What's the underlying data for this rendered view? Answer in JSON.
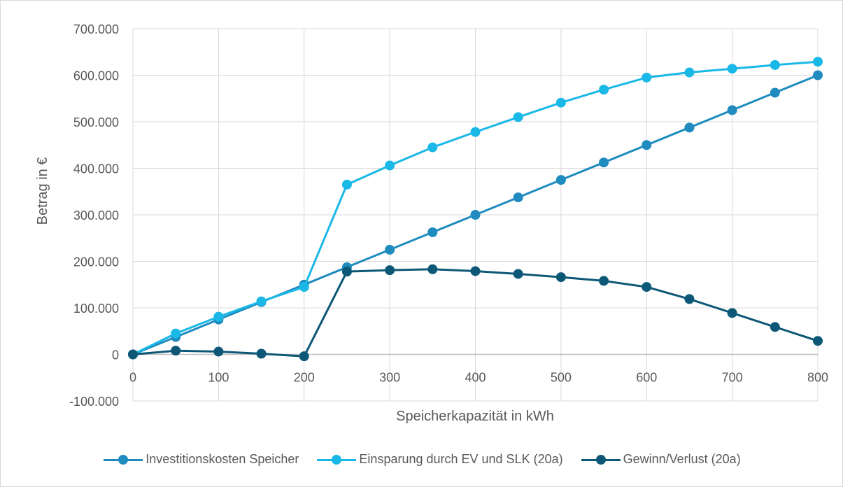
{
  "chart_data": {
    "type": "line",
    "xlabel": "Speicherkapazität in kWh",
    "ylabel": "Betrag  in €",
    "xlim": [
      0,
      800
    ],
    "ylim": [
      -100000,
      700000
    ],
    "x_ticks": [
      0,
      100,
      200,
      300,
      400,
      500,
      600,
      700,
      800
    ],
    "y_ticks": [
      -100000,
      0,
      100000,
      200000,
      300000,
      400000,
      500000,
      600000,
      700000
    ],
    "x_tick_labels": [
      "0",
      "100",
      "200",
      "300",
      "400",
      "500",
      "600",
      "700",
      "800"
    ],
    "y_tick_labels": [
      "-100.000",
      "0",
      "100.000",
      "200.000",
      "300.000",
      "400.000",
      "500.000",
      "600.000",
      "700.000"
    ],
    "grid": true,
    "legend_position": "bottom",
    "x": [
      0,
      50,
      100,
      150,
      200,
      250,
      300,
      350,
      400,
      450,
      500,
      550,
      600,
      650,
      700,
      750,
      800
    ],
    "series": [
      {
        "name": "Investitionskosten Speicher",
        "color": "#1f8bbf",
        "values": [
          0,
          37500,
          75000,
          112500,
          150000,
          187500,
          225000,
          262500,
          300000,
          337500,
          375000,
          412500,
          450000,
          487500,
          525000,
          562500,
          600000
        ]
      },
      {
        "name": "Einsparung durch EV und SLK (20a)",
        "color": "#1ab8e6",
        "values": [
          0,
          45000,
          81000,
          114000,
          145000,
          365000,
          406000,
          445000,
          478000,
          510000,
          541000,
          569000,
          595000,
          606000,
          614000,
          622000,
          629000
        ]
      },
      {
        "name": "Gewinn/Verlust (20a)",
        "color": "#0d5876",
        "values": [
          0,
          8000,
          6000,
          1500,
          -4000,
          178000,
          181000,
          183000,
          179000,
          173000,
          166000,
          158000,
          145000,
          119000,
          89000,
          59000,
          29000
        ]
      }
    ]
  }
}
